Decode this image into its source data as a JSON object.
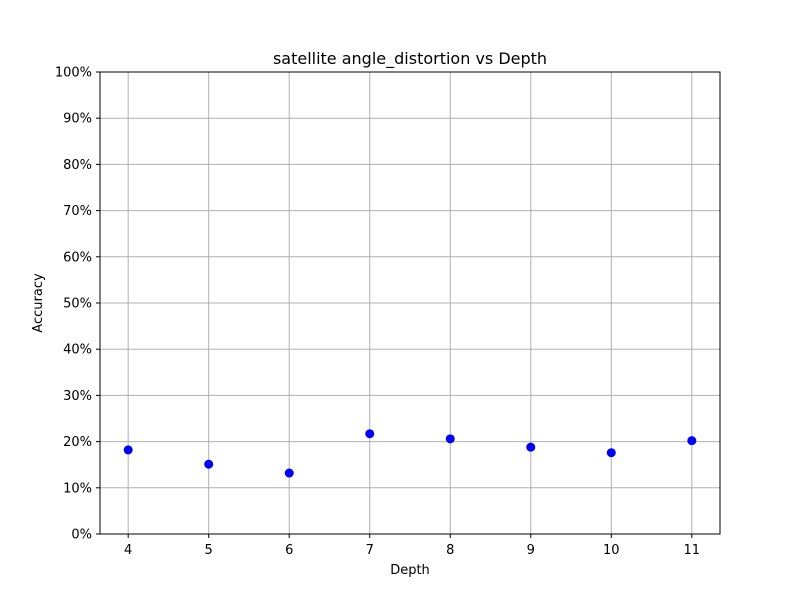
{
  "chart_data": {
    "type": "scatter",
    "title": "satellite angle_distortion vs Depth",
    "xlabel": "Depth",
    "ylabel": "Accuracy",
    "x": [
      4,
      5,
      6,
      7,
      8,
      9,
      10,
      11
    ],
    "series": [
      {
        "values": [
          0.182,
          0.151,
          0.132,
          0.217,
          0.206,
          0.188,
          0.176,
          0.202
        ],
        "color": "#0000ff"
      }
    ],
    "xlim": [
      3.65,
      11.35
    ],
    "ylim": [
      0,
      1
    ],
    "xticks": [
      4,
      5,
      6,
      7,
      8,
      9,
      10,
      11
    ],
    "xtick_labels": [
      "4",
      "5",
      "6",
      "7",
      "8",
      "9",
      "10",
      "11"
    ],
    "yticks": [
      0,
      0.1,
      0.2,
      0.3,
      0.4,
      0.5,
      0.6,
      0.7,
      0.8,
      0.9,
      1.0
    ],
    "ytick_labels": [
      "0%",
      "10%",
      "20%",
      "30%",
      "40%",
      "50%",
      "60%",
      "70%",
      "80%",
      "90%",
      "100%"
    ],
    "grid": true,
    "legend": "none"
  }
}
